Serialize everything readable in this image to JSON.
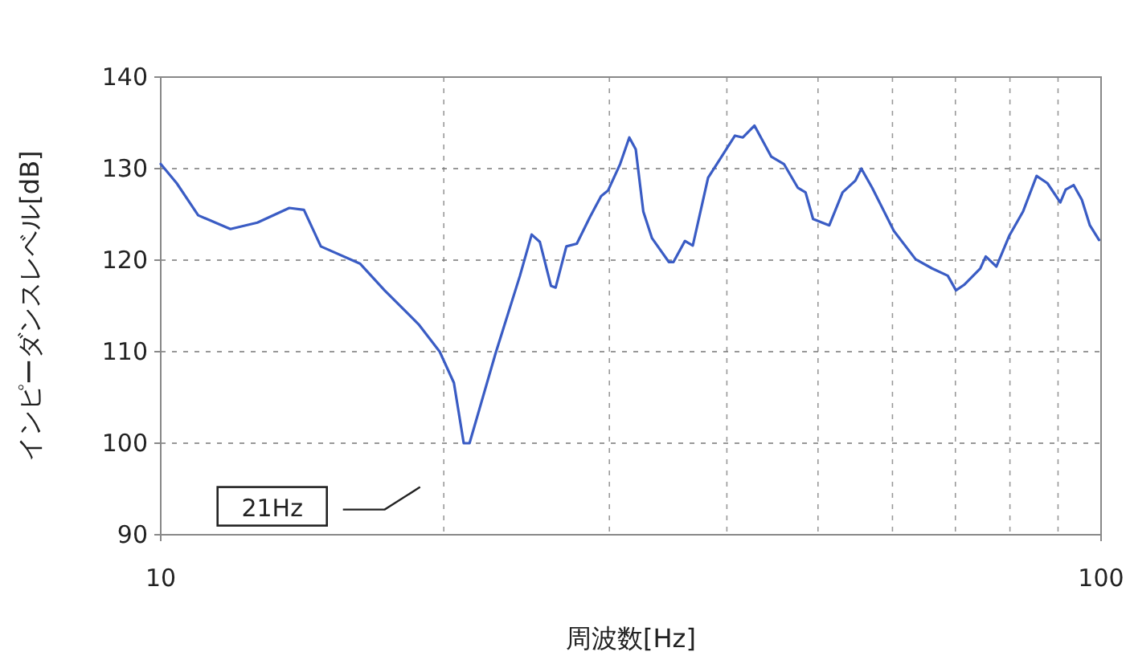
{
  "chart_data": {
    "type": "line",
    "xlabel": "周波数[Hz]",
    "ylabel": "インピーダンスレベル[dB]",
    "log": "x",
    "xlim": [
      10,
      100
    ],
    "xticks": [
      10,
      100
    ],
    "ylim": [
      90,
      140
    ],
    "yticks": [
      90,
      100,
      110,
      120,
      130,
      140
    ],
    "grid": true,
    "line_style": "solid",
    "marker": "none",
    "x": [
      10,
      10.4,
      10.96,
      11.86,
      12.67,
      13.7,
      14.2,
      14.8,
      16.3,
      17.3,
      18.8,
      19.8,
      20.5,
      21.0,
      21.3,
      22.7,
      24.1,
      24.8,
      25.3,
      26,
      26.3,
      27,
      27.7,
      28.6,
      29.4,
      29.9,
      30.8,
      31.5,
      32.0,
      32.6,
      33.3,
      34.7,
      35.1,
      36.1,
      36.8,
      38.2,
      39.2,
      40.8,
      41.6,
      42.8,
      44.6,
      46.0,
      47.6,
      48.5,
      49.4,
      51.4,
      53.1,
      54.8,
      55.6,
      57.1,
      60.2,
      63.5,
      66.1,
      68.7,
      70.1,
      71.5,
      74.4,
      75.4,
      77.4,
      79.9,
      82.6,
      85.4,
      87.7,
      90.5,
      91.7,
      93.5,
      95.4,
      97.3,
      99.5
    ],
    "series": [
      {
        "color": "#3a5cc4",
        "values": [
          130.5,
          128.4,
          124.9,
          123.4,
          124.1,
          125.7,
          125.5,
          121.5,
          119.6,
          116.7,
          113,
          110,
          106.6,
          100,
          100,
          109.8,
          118.3,
          122.8,
          122,
          117.2,
          117,
          121.5,
          121.8,
          124.7,
          127,
          127.6,
          130.5,
          133.4,
          132.1,
          125.3,
          122.4,
          119.8,
          119.8,
          122.1,
          121.6,
          129,
          130.8,
          133.6,
          133.4,
          134.7,
          131.3,
          130.5,
          127.9,
          127.4,
          124.5,
          123.8,
          127.4,
          128.7,
          130,
          127.9,
          123.2,
          120.1,
          119.1,
          118.3,
          116.7,
          117.3,
          119.1,
          120.4,
          119.3,
          122.7,
          125.3,
          129.2,
          128.4,
          126.3,
          127.7,
          128.2,
          126.6,
          123.8,
          122.2
        ]
      }
    ],
    "annotations": [
      "21Hz"
    ]
  }
}
